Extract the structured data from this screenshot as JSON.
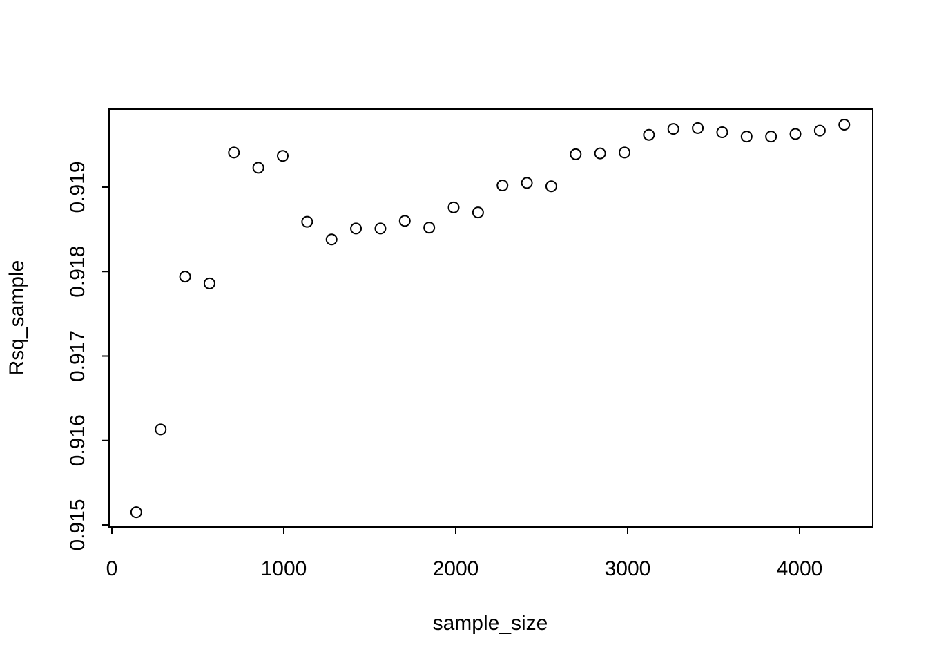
{
  "chart_data": {
    "type": "scatter",
    "title": "",
    "xlabel": "sample_size",
    "ylabel": "Rsq_sample",
    "xlim": [
      0,
      4400
    ],
    "ylim": [
      0.915,
      0.9198
    ],
    "x_ticks": [
      0,
      1000,
      2000,
      3000,
      4000
    ],
    "y_ticks": [
      0.915,
      0.916,
      0.917,
      0.918,
      0.919
    ],
    "x_tick_labels": [
      "0",
      "1000",
      "2000",
      "3000",
      "4000"
    ],
    "y_tick_labels": [
      "0.915",
      "0.916",
      "0.917",
      "0.918",
      "0.919"
    ],
    "grid": false,
    "legend": "none",
    "marker": "open-circle",
    "series": [
      {
        "points": [
          {
            "x": 142,
            "y": 0.91515
          },
          {
            "x": 284,
            "y": 0.91613
          },
          {
            "x": 426,
            "y": 0.91794
          },
          {
            "x": 568,
            "y": 0.91786
          },
          {
            "x": 710,
            "y": 0.91941
          },
          {
            "x": 852,
            "y": 0.91923
          },
          {
            "x": 994,
            "y": 0.91937
          },
          {
            "x": 1136,
            "y": 0.91859
          },
          {
            "x": 1278,
            "y": 0.91838
          },
          {
            "x": 1420,
            "y": 0.91851
          },
          {
            "x": 1562,
            "y": 0.91851
          },
          {
            "x": 1704,
            "y": 0.9186
          },
          {
            "x": 1846,
            "y": 0.91852
          },
          {
            "x": 1988,
            "y": 0.91876
          },
          {
            "x": 2130,
            "y": 0.9187
          },
          {
            "x": 2272,
            "y": 0.91902
          },
          {
            "x": 2414,
            "y": 0.91905
          },
          {
            "x": 2556,
            "y": 0.91901
          },
          {
            "x": 2698,
            "y": 0.91939
          },
          {
            "x": 2840,
            "y": 0.9194
          },
          {
            "x": 2982,
            "y": 0.91941
          },
          {
            "x": 3124,
            "y": 0.91962
          },
          {
            "x": 3266,
            "y": 0.91969
          },
          {
            "x": 3408,
            "y": 0.9197
          },
          {
            "x": 3550,
            "y": 0.91965
          },
          {
            "x": 3692,
            "y": 0.9196
          },
          {
            "x": 3834,
            "y": 0.9196
          },
          {
            "x": 3976,
            "y": 0.91963
          },
          {
            "x": 4118,
            "y": 0.91967
          },
          {
            "x": 4260,
            "y": 0.91974
          }
        ]
      }
    ]
  }
}
